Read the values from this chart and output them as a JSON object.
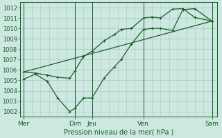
{
  "xlabel": "Pression niveau de la mer( hPa )",
  "background_color": "#cce8e0",
  "line_color": "#1a5e28",
  "grid_color": "#a8c8be",
  "ylim": [
    1001.5,
    1012.5
  ],
  "yticks": [
    1002,
    1003,
    1004,
    1005,
    1006,
    1007,
    1008,
    1009,
    1010,
    1011,
    1012
  ],
  "day_labels": [
    "Mer",
    "",
    "",
    "Dim",
    "Jeu",
    "",
    "",
    "Ven",
    "",
    "",
    "",
    "Sam"
  ],
  "day_major_positions": [
    0,
    3,
    4,
    7,
    11
  ],
  "day_major_labels": [
    "Mer",
    "Dim",
    "Jeu",
    "Ven",
    "Sam"
  ],
  "xlim": [
    -0.2,
    11.3
  ],
  "straight_line": {
    "x": [
      0,
      11
    ],
    "y": [
      1005.8,
      1010.7
    ]
  },
  "jagged_line": {
    "x": [
      0,
      0.7,
      1.4,
      2.0,
      2.7,
      3.0,
      3.5,
      4.0,
      4.7,
      5.3,
      5.7,
      6.3,
      7.0,
      7.5,
      8.0,
      8.7,
      9.3,
      10.0,
      11.0
    ],
    "y": [
      1005.1,
      1005.6,
      1004.9,
      1003.3,
      1002.0,
      1002.3,
      1003.3,
      1003.3,
      1005.2,
      1006.3,
      1007.0,
      1008.5,
      1009.9,
      1010.0,
      1010.0,
      1009.8,
      1011.8,
      1011.9,
      1010.7
    ]
  },
  "smooth_line": {
    "x": [
      0,
      0.7,
      1.4,
      2.0,
      2.7,
      3.0,
      3.5,
      4.0,
      4.7,
      5.3,
      5.7,
      6.3,
      7.0,
      7.5,
      8.0,
      8.7,
      9.3,
      10.0,
      11.0
    ],
    "y": [
      1005.8,
      1005.7,
      1005.5,
      1005.3,
      1005.2,
      1005.9,
      1007.3,
      1007.8,
      1008.8,
      1009.4,
      1009.9,
      1010.0,
      1011.0,
      1011.1,
      1011.0,
      1011.85,
      1011.9,
      1011.05,
      1010.7
    ]
  },
  "ylabel_fontsize": 6,
  "xlabel_fontsize": 7,
  "xtick_fontsize": 6.5,
  "ytick_fontsize": 6
}
